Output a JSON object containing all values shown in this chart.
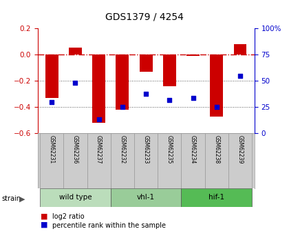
{
  "title": "GDS1379 / 4254",
  "samples": [
    "GSM62231",
    "GSM62236",
    "GSM62237",
    "GSM62232",
    "GSM62233",
    "GSM62235",
    "GSM62234",
    "GSM62238",
    "GSM62239"
  ],
  "log2_ratios": [
    -0.33,
    0.055,
    -0.52,
    -0.42,
    -0.13,
    -0.24,
    -0.01,
    -0.47,
    0.08
  ],
  "percentile_ranks": [
    30,
    48,
    13,
    25,
    38,
    32,
    34,
    25,
    55
  ],
  "groups": [
    {
      "label": "wild type",
      "start": 0,
      "end": 3,
      "color": "#bbddbb"
    },
    {
      "label": "vhl-1",
      "start": 3,
      "end": 6,
      "color": "#99cc99"
    },
    {
      "label": "hif-1",
      "start": 6,
      "end": 9,
      "color": "#55bb55"
    }
  ],
  "bar_color": "#cc0000",
  "dot_color": "#0000cc",
  "sample_box_color": "#cccccc",
  "ylim_left": [
    -0.6,
    0.2
  ],
  "ylim_right": [
    0,
    100
  ],
  "yticks_left": [
    -0.6,
    -0.4,
    -0.2,
    0.0,
    0.2
  ],
  "yticks_right": [
    0,
    25,
    50,
    75,
    100
  ],
  "hline_color": "#cc0000",
  "dotted_line_color": "#555555",
  "background_color": "#ffffff"
}
